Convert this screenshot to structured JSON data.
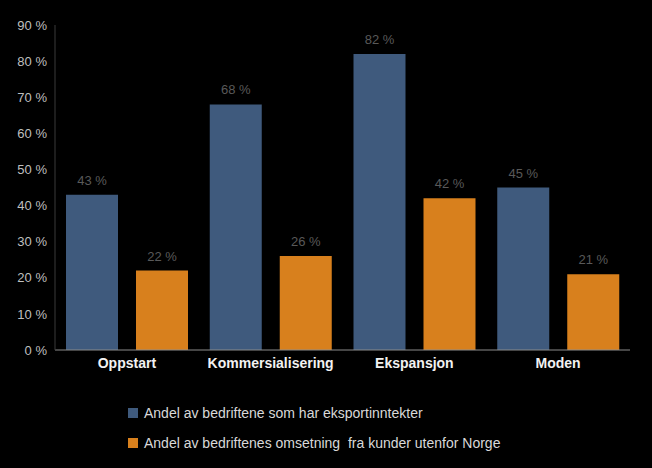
{
  "chart_data": {
    "type": "bar",
    "categories": [
      "Oppstart",
      "Kommersialisering",
      "Ekspansjon",
      "Moden"
    ],
    "series": [
      {
        "name": "Andel av bedriftene som har eksportinntekter",
        "color": "#3f5a7d",
        "values": [
          43,
          68,
          82,
          45
        ],
        "value_labels": [
          "43 %",
          "68 %",
          "82 %",
          "45 %"
        ]
      },
      {
        "name": "Andel av bedriftenes omsetning  fra kunder utenfor Norge",
        "color": "#d8801d",
        "values": [
          22,
          26,
          42,
          21
        ],
        "value_labels": [
          "22 %",
          "26 %",
          "42 %",
          "21 %"
        ]
      }
    ],
    "ylim": [
      0,
      90
    ],
    "yticks": [
      {
        "value": 0,
        "label": "0 %"
      },
      {
        "value": 10,
        "label": "10 %"
      },
      {
        "value": 20,
        "label": "20 %"
      },
      {
        "value": 30,
        "label": "30 %"
      },
      {
        "value": 40,
        "label": "40 %"
      },
      {
        "value": 50,
        "label": "50 %"
      },
      {
        "value": 60,
        "label": "60 %"
      },
      {
        "value": 70,
        "label": "70 %"
      },
      {
        "value": 80,
        "label": "80 %"
      },
      {
        "value": 90,
        "label": "90 %"
      }
    ],
    "grid": false,
    "data_labels": true,
    "legend": "bottom"
  }
}
